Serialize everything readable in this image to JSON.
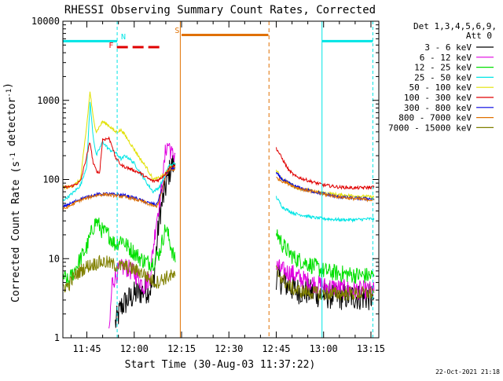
{
  "chart_data": {
    "type": "line",
    "title": "RHESSI Observing Summary Count Rates, Corrected",
    "xlabel": "Start Time (30-Aug-03 11:37:22)",
    "ylabel": "Corrected Count Rate (s⁻¹ detector⁻¹)",
    "ylog": true,
    "ylim": [
      1,
      10000
    ],
    "xlim_minutes_of_day": [
      697.4,
      797.5
    ],
    "x_ticks": [
      {
        "label": "11:45",
        "t": 705
      },
      {
        "label": "12:00",
        "t": 720
      },
      {
        "label": "12:15",
        "t": 735
      },
      {
        "label": "12:30",
        "t": 750
      },
      {
        "label": "12:45",
        "t": 765
      },
      {
        "label": "13:00",
        "t": 780
      },
      {
        "label": "13:15",
        "t": 795
      }
    ],
    "y_ticks": [
      {
        "label": "1",
        "v": 1
      },
      {
        "label": "10",
        "v": 10
      },
      {
        "label": "100",
        "v": 100
      },
      {
        "label": "1000",
        "v": 1000
      },
      {
        "label": "10000",
        "v": 10000
      }
    ],
    "legend_header": [
      "Det 1,3,4,5,6,9,",
      "Att 0"
    ],
    "timestamp": "22-Oct-2021 21:18",
    "flags": [
      {
        "label": "N",
        "t": 714.6,
        "color": "#00e5e5"
      },
      {
        "label": "F",
        "t": 713.2,
        "color": "#ff0000"
      },
      {
        "label": "S",
        "t": 734.6,
        "color": "#e07000"
      }
    ],
    "markers": {
      "cyan_bars": [
        {
          "t_start": 697.4,
          "t_end": 714.6,
          "level": 5600
        },
        {
          "t_start": 779.5,
          "t_end": 795.6,
          "level": 5600
        }
      ],
      "cyan_solid_lines": [
        697.4,
        779.5
      ],
      "cyan_dashed_lines": [
        714.6,
        795.6
      ],
      "red_dashed_bar": {
        "t_start": 714.5,
        "t_end": 729.4,
        "level": 4700
      },
      "orange_bar": {
        "t_start": 735.0,
        "t_end": 762.5,
        "level": 6700
      },
      "orange_solid_line": 734.6,
      "orange_dashed_line": 762.7
    },
    "series": [
      {
        "name": "3 - 6 keV",
        "color": "#000000",
        "seg1": [
          [
            714,
            1.5
          ],
          [
            716,
            2.5
          ],
          [
            718,
            3
          ],
          [
            720,
            3.5
          ],
          [
            722,
            3.8
          ],
          [
            724,
            4
          ],
          [
            726,
            4.5
          ],
          [
            728,
            35
          ],
          [
            730,
            80
          ],
          [
            731,
            120
          ],
          [
            732,
            150
          ],
          [
            733,
            160
          ]
        ],
        "seg2": [
          [
            765,
            6
          ],
          [
            767,
            5
          ],
          [
            769,
            4.5
          ],
          [
            771,
            4
          ],
          [
            775,
            3.8
          ],
          [
            779,
            3.5
          ],
          [
            785,
            3.3
          ],
          [
            790,
            3.3
          ],
          [
            796,
            3.2
          ]
        ]
      },
      {
        "name": "6 - 12 keV",
        "color": "#e000e0",
        "seg1": [
          [
            712,
            1
          ],
          [
            713,
            5
          ],
          [
            715,
            7
          ],
          [
            717,
            8
          ],
          [
            719,
            7
          ],
          [
            721,
            6
          ],
          [
            723,
            4.5
          ],
          [
            725,
            6
          ],
          [
            727,
            30
          ],
          [
            729,
            90
          ],
          [
            730,
            250
          ],
          [
            731,
            280
          ],
          [
            732,
            200
          ],
          [
            733,
            210
          ]
        ],
        "seg2": [
          [
            765,
            8
          ],
          [
            767,
            7
          ],
          [
            770,
            6.5
          ],
          [
            773,
            5.5
          ],
          [
            776,
            5
          ],
          [
            780,
            4.5
          ],
          [
            785,
            4.2
          ],
          [
            790,
            4
          ],
          [
            796,
            3.9
          ]
        ]
      },
      {
        "name": "12 - 25 keV",
        "color": "#00e000",
        "seg1": [
          [
            697.5,
            6
          ],
          [
            699,
            5
          ],
          [
            701,
            7
          ],
          [
            703,
            10
          ],
          [
            705,
            14
          ],
          [
            707,
            25
          ],
          [
            708,
            30
          ],
          [
            710,
            22
          ],
          [
            712,
            20
          ],
          [
            714,
            15
          ],
          [
            716,
            18
          ],
          [
            718,
            14
          ],
          [
            720,
            12
          ],
          [
            722,
            10
          ],
          [
            724,
            9
          ],
          [
            726,
            9
          ],
          [
            728,
            12
          ],
          [
            730,
            25
          ],
          [
            731,
            18
          ],
          [
            733,
            9
          ]
        ],
        "seg2": [
          [
            765,
            22
          ],
          [
            767,
            15
          ],
          [
            769,
            12
          ],
          [
            771,
            10
          ],
          [
            774,
            9
          ],
          [
            777,
            8
          ],
          [
            780,
            7
          ],
          [
            785,
            6.5
          ],
          [
            790,
            6.2
          ],
          [
            796,
            6
          ]
        ]
      },
      {
        "name": "25 - 50 keV",
        "color": "#00e5e5",
        "seg1": [
          [
            697.5,
            55
          ],
          [
            699,
            60
          ],
          [
            701,
            70
          ],
          [
            703,
            85
          ],
          [
            705,
            150
          ],
          [
            706,
            950
          ],
          [
            707,
            350
          ],
          [
            708,
            200
          ],
          [
            710,
            300
          ],
          [
            712,
            240
          ],
          [
            714,
            220
          ],
          [
            716,
            180
          ],
          [
            717,
            200
          ],
          [
            718,
            190
          ],
          [
            720,
            160
          ],
          [
            722,
            120
          ],
          [
            724,
            90
          ],
          [
            726,
            70
          ],
          [
            728,
            80
          ],
          [
            730,
            120
          ],
          [
            731,
            150
          ],
          [
            733,
            160
          ]
        ],
        "seg2": [
          [
            765,
            60
          ],
          [
            767,
            45
          ],
          [
            769,
            40
          ],
          [
            771,
            37
          ],
          [
            774,
            35
          ],
          [
            777,
            33
          ],
          [
            780,
            32
          ],
          [
            785,
            31
          ],
          [
            790,
            31
          ],
          [
            796,
            32
          ]
        ]
      },
      {
        "name": "50 - 100 keV",
        "color": "#e0e000",
        "seg1": [
          [
            697.5,
            80
          ],
          [
            699,
            80
          ],
          [
            701,
            85
          ],
          [
            703,
            100
          ],
          [
            705,
            500
          ],
          [
            706,
            1300
          ],
          [
            707,
            600
          ],
          [
            708,
            400
          ],
          [
            710,
            540
          ],
          [
            712,
            480
          ],
          [
            714,
            400
          ],
          [
            716,
            420
          ],
          [
            718,
            320
          ],
          [
            720,
            240
          ],
          [
            722,
            180
          ],
          [
            724,
            140
          ],
          [
            726,
            100
          ],
          [
            728,
            105
          ],
          [
            730,
            120
          ],
          [
            731,
            140
          ],
          [
            733,
            145
          ]
        ],
        "seg2": [
          [
            765,
            130
          ],
          [
            767,
            100
          ],
          [
            769,
            90
          ],
          [
            771,
            80
          ],
          [
            774,
            75
          ],
          [
            777,
            70
          ],
          [
            780,
            68
          ],
          [
            785,
            64
          ],
          [
            790,
            62
          ],
          [
            796,
            60
          ]
        ]
      },
      {
        "name": "100 - 300 keV",
        "color": "#e00000",
        "seg1": [
          [
            697.5,
            80
          ],
          [
            699,
            80
          ],
          [
            701,
            85
          ],
          [
            703,
            95
          ],
          [
            705,
            200
          ],
          [
            706,
            300
          ],
          [
            707,
            160
          ],
          [
            708,
            130
          ],
          [
            709,
            120
          ],
          [
            710,
            320
          ],
          [
            712,
            330
          ],
          [
            713,
            270
          ],
          [
            714,
            190
          ],
          [
            716,
            150
          ],
          [
            718,
            140
          ],
          [
            720,
            130
          ],
          [
            722,
            120
          ],
          [
            724,
            105
          ],
          [
            726,
            95
          ],
          [
            728,
            100
          ],
          [
            730,
            120
          ],
          [
            731,
            140
          ],
          [
            733,
            150
          ]
        ],
        "seg2": [
          [
            765,
            250
          ],
          [
            767,
            180
          ],
          [
            769,
            130
          ],
          [
            771,
            110
          ],
          [
            774,
            100
          ],
          [
            777,
            92
          ],
          [
            780,
            85
          ],
          [
            785,
            80
          ],
          [
            790,
            78
          ],
          [
            796,
            80
          ]
        ]
      },
      {
        "name": "300 - 800 keV",
        "color": "#0000e0",
        "seg1": [
          [
            697.5,
            45
          ],
          [
            699,
            48
          ],
          [
            701,
            52
          ],
          [
            703,
            57
          ],
          [
            705,
            60
          ],
          [
            707,
            63
          ],
          [
            709,
            65
          ],
          [
            711,
            66
          ],
          [
            713,
            65
          ],
          [
            715,
            64
          ],
          [
            717,
            63
          ],
          [
            719,
            60
          ],
          [
            721,
            57
          ],
          [
            723,
            53
          ],
          [
            725,
            50
          ],
          [
            727,
            48
          ],
          [
            728,
            60
          ],
          [
            730,
            110
          ],
          [
            731,
            130
          ],
          [
            733,
            140
          ]
        ],
        "seg2": [
          [
            765,
            120
          ],
          [
            767,
            100
          ],
          [
            769,
            90
          ],
          [
            771,
            82
          ],
          [
            774,
            75
          ],
          [
            777,
            70
          ],
          [
            780,
            66
          ],
          [
            785,
            60
          ],
          [
            790,
            58
          ],
          [
            796,
            57
          ]
        ]
      },
      {
        "name": "800 - 7000 keV",
        "color": "#e07000",
        "seg1": [
          [
            697.5,
            42
          ],
          [
            699,
            45
          ],
          [
            701,
            50
          ],
          [
            703,
            55
          ],
          [
            705,
            58
          ],
          [
            707,
            62
          ],
          [
            709,
            64
          ],
          [
            711,
            65
          ],
          [
            713,
            63
          ],
          [
            715,
            62
          ],
          [
            717,
            60
          ],
          [
            719,
            58
          ],
          [
            721,
            55
          ],
          [
            723,
            52
          ],
          [
            725,
            48
          ],
          [
            727,
            45
          ],
          [
            728,
            55
          ],
          [
            730,
            110
          ],
          [
            731,
            130
          ],
          [
            733,
            135
          ]
        ],
        "seg2": [
          [
            765,
            105
          ],
          [
            767,
            95
          ],
          [
            769,
            88
          ],
          [
            771,
            80
          ],
          [
            774,
            74
          ],
          [
            777,
            70
          ],
          [
            780,
            65
          ],
          [
            785,
            60
          ],
          [
            790,
            57
          ],
          [
            796,
            55
          ]
        ]
      },
      {
        "name": "7000 - 15000 keV",
        "color": "#808000",
        "seg1": [
          [
            697.5,
            4.5
          ],
          [
            699,
            4.5
          ],
          [
            701,
            6
          ],
          [
            703,
            7
          ],
          [
            705,
            8
          ],
          [
            707,
            8.5
          ],
          [
            709,
            9
          ],
          [
            711,
            9
          ],
          [
            713,
            8.5
          ],
          [
            715,
            8
          ],
          [
            717,
            8
          ],
          [
            719,
            7.5
          ],
          [
            721,
            7
          ],
          [
            723,
            6.5
          ],
          [
            725,
            5.5
          ],
          [
            727,
            5
          ],
          [
            729,
            5.5
          ],
          [
            731,
            6
          ],
          [
            733,
            6
          ]
        ],
        "seg2": [
          [
            765,
            7
          ],
          [
            767,
            5.5
          ],
          [
            769,
            4.5
          ],
          [
            771,
            4
          ],
          [
            774,
            3.8
          ],
          [
            777,
            3.7
          ],
          [
            780,
            3.6
          ],
          [
            785,
            3.6
          ],
          [
            790,
            3.6
          ],
          [
            796,
            3.7
          ]
        ]
      }
    ]
  }
}
